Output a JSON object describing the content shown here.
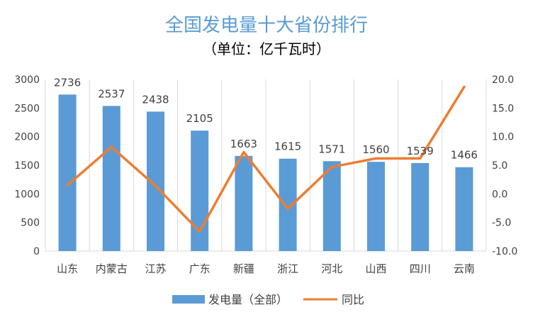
{
  "chart_data": {
    "type": "bar",
    "title": "全国发电量十大省份排行",
    "subtitle": "（单位：亿千瓦时）",
    "categories": [
      "山东",
      "内蒙古",
      "江苏",
      "广东",
      "新疆",
      "浙江",
      "河北",
      "山西",
      "四川",
      "云南"
    ],
    "series": [
      {
        "name": "发电量（全部）",
        "type": "bar",
        "axis": "left",
        "color": "#5b9bd5",
        "values": [
          2736,
          2537,
          2438,
          2105,
          1663,
          1615,
          1571,
          1560,
          1539,
          1466
        ],
        "data_labels": [
          "2736",
          "2537",
          "2438",
          "2105",
          "1663",
          "1615",
          "1571",
          "1560",
          "1539",
          "1466"
        ]
      },
      {
        "name": "同比",
        "type": "line",
        "axis": "right",
        "color": "#ed7d31",
        "values": [
          1.5,
          8.2,
          1.4,
          -6.6,
          7.3,
          -2.6,
          4.7,
          6.2,
          6.2,
          18.7
        ]
      }
    ],
    "ylim_left": [
      0,
      3000
    ],
    "ylim_right": [
      -10,
      20
    ],
    "yticks_left": [
      "0",
      "500",
      "1000",
      "1500",
      "2000",
      "2500",
      "3000"
    ],
    "yticks_right": [
      "-10.0",
      "-5.0",
      "0.0",
      "5.0",
      "10.0",
      "15.0",
      "20.0"
    ],
    "grid": "vertical",
    "legend_position": "bottom"
  }
}
